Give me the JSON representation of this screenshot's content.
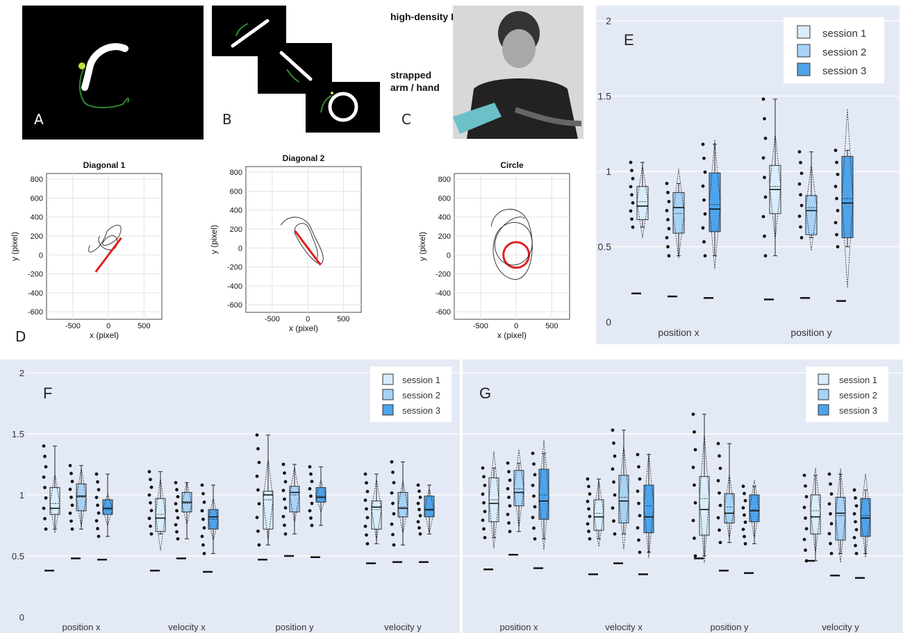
{
  "panel_labels": {
    "A": "A",
    "B": "B",
    "C": "C",
    "D": "D",
    "E": "E",
    "F": "F",
    "G": "G"
  },
  "panel_c": {
    "line1": "high-density EEG",
    "line2": "strapped",
    "line3": "arm / hand"
  },
  "colors": {
    "bg": "#e4eaf5",
    "s1": "#d8ecfb",
    "s2": "#a7d2f6",
    "s3": "#4ea3ea",
    "trace_green": "#2e8b2e",
    "target_red": "#e02020"
  },
  "legend": [
    "session 1",
    "session 2",
    "session 3"
  ],
  "trajectory_plots": [
    {
      "title": "Diagonal 1",
      "xlabel": "x (pixel)",
      "ylabel": "y (pixel)",
      "xticks": [
        "-500",
        "0",
        "500"
      ],
      "yticks": [
        "800",
        "600",
        "400",
        "200",
        "0",
        "-200",
        "-400",
        "-600"
      ]
    },
    {
      "title": "Diagonal 2",
      "xlabel": "x (pixel)",
      "ylabel": "y (pixel)",
      "xticks": [
        "-500",
        "0",
        "500"
      ],
      "yticks": [
        "800",
        "600",
        "400",
        "200",
        "0",
        "-200",
        "-400",
        "-600"
      ]
    },
    {
      "title": "Circle",
      "xlabel": "x (pixel)",
      "ylabel": "y (pixel)",
      "xticks": [
        "-500",
        "0",
        "500"
      ],
      "yticks": [
        "800",
        "600",
        "400",
        "200",
        "0",
        "-200",
        "-400",
        "-600"
      ]
    }
  ],
  "chart_data": [
    {
      "panel": "E",
      "type": "box",
      "ylim": [
        0,
        2
      ],
      "yticks": [
        "0",
        "0.5",
        "1",
        "1.5",
        "2"
      ],
      "categories": [
        "position x",
        "position y"
      ],
      "series": [
        {
          "name": "session 1",
          "boxes": [
            {
              "min": 0.63,
              "q1": 0.68,
              "median": 0.77,
              "mean": 0.8,
              "q3": 0.9,
              "max": 1.06,
              "chance": 0.19
            },
            {
              "min": 0.44,
              "q1": 0.72,
              "median": 0.88,
              "mean": 0.9,
              "q3": 1.04,
              "max": 1.48,
              "chance": 0.15
            }
          ]
        },
        {
          "name": "session 2",
          "boxes": [
            {
              "min": 0.44,
              "q1": 0.59,
              "median": 0.76,
              "mean": 0.72,
              "q3": 0.86,
              "max": 0.92,
              "chance": 0.17
            },
            {
              "min": 0.56,
              "q1": 0.58,
              "median": 0.74,
              "mean": 0.76,
              "q3": 0.84,
              "max": 1.13,
              "chance": 0.16
            }
          ]
        },
        {
          "name": "session 3",
          "boxes": [
            {
              "min": 0.44,
              "q1": 0.6,
              "median": 0.75,
              "mean": 0.78,
              "q3": 0.99,
              "max": 1.18,
              "chance": 0.16
            },
            {
              "min": 0.5,
              "q1": 0.56,
              "median": 0.79,
              "mean": 0.82,
              "q3": 1.1,
              "max": 1.14,
              "chance": 0.14
            }
          ]
        }
      ]
    },
    {
      "panel": "F",
      "type": "box",
      "ylim": [
        0,
        2
      ],
      "yticks": [
        "0",
        "0.5",
        "1",
        "1.5",
        "2"
      ],
      "categories": [
        "position x",
        "velocity x",
        "position y",
        "velocity y"
      ],
      "series": [
        {
          "name": "session 1",
          "boxes": [
            {
              "min": 0.72,
              "q1": 0.84,
              "median": 0.89,
              "mean": 0.93,
              "q3": 1.06,
              "max": 1.4,
              "chance": 0.38
            },
            {
              "min": 0.68,
              "q1": 0.7,
              "median": 0.81,
              "mean": 0.84,
              "q3": 0.97,
              "max": 1.19,
              "chance": 0.38
            },
            {
              "min": 0.59,
              "q1": 0.72,
              "median": 1.0,
              "mean": 0.96,
              "q3": 1.03,
              "max": 1.49,
              "chance": 0.47
            },
            {
              "min": 0.6,
              "q1": 0.72,
              "median": 0.9,
              "mean": 0.88,
              "q3": 0.95,
              "max": 1.17,
              "chance": 0.44
            }
          ]
        },
        {
          "name": "session 2",
          "boxes": [
            {
              "min": 0.72,
              "q1": 0.87,
              "median": 0.99,
              "mean": 0.98,
              "q3": 1.09,
              "max": 1.24,
              "chance": 0.48
            },
            {
              "min": 0.64,
              "q1": 0.86,
              "median": 0.94,
              "mean": 0.93,
              "q3": 1.02,
              "max": 1.1,
              "chance": 0.48
            },
            {
              "min": 0.68,
              "q1": 0.86,
              "median": 1.02,
              "mean": 1.0,
              "q3": 1.07,
              "max": 1.25,
              "chance": 0.5
            },
            {
              "min": 0.59,
              "q1": 0.82,
              "median": 0.89,
              "mean": 0.9,
              "q3": 1.02,
              "max": 1.27,
              "chance": 0.45
            }
          ]
        },
        {
          "name": "session 3",
          "boxes": [
            {
              "min": 0.66,
              "q1": 0.84,
              "median": 0.89,
              "mean": 0.88,
              "q3": 0.96,
              "max": 1.17,
              "chance": 0.47
            },
            {
              "min": 0.52,
              "q1": 0.72,
              "median": 0.82,
              "mean": 0.8,
              "q3": 0.88,
              "max": 1.08,
              "chance": 0.37
            },
            {
              "min": 0.75,
              "q1": 0.94,
              "median": 0.98,
              "mean": 0.99,
              "q3": 1.06,
              "max": 1.23,
              "chance": 0.49
            },
            {
              "min": 0.68,
              "q1": 0.82,
              "median": 0.88,
              "mean": 0.87,
              "q3": 0.99,
              "max": 1.08,
              "chance": 0.45
            }
          ]
        }
      ]
    },
    {
      "panel": "G",
      "type": "box",
      "ylim": [
        0,
        2
      ],
      "yticks": [
        "0",
        "0.5",
        "1",
        "1.5",
        "2"
      ],
      "categories": [
        "position x",
        "velocity x",
        "position y",
        "velocity y"
      ],
      "series": [
        {
          "name": "session 1",
          "boxes": [
            {
              "min": 0.65,
              "q1": 0.78,
              "median": 0.93,
              "mean": 0.96,
              "q3": 1.14,
              "max": 1.22,
              "chance": 0.39
            },
            {
              "min": 0.64,
              "q1": 0.71,
              "median": 0.82,
              "mean": 0.85,
              "q3": 0.96,
              "max": 1.13,
              "chance": 0.35
            },
            {
              "min": 0.5,
              "q1": 0.67,
              "median": 0.88,
              "mean": 0.97,
              "q3": 1.15,
              "max": 1.66,
              "chance": 0.48
            },
            {
              "min": 0.46,
              "q1": 0.68,
              "median": 0.82,
              "mean": 0.87,
              "q3": 1.0,
              "max": 1.16,
              "chance": 0.46
            }
          ]
        },
        {
          "name": "session 2",
          "boxes": [
            {
              "min": 0.7,
              "q1": 0.91,
              "median": 1.02,
              "mean": 1.05,
              "q3": 1.2,
              "max": 1.26,
              "chance": 0.51
            },
            {
              "min": 0.68,
              "q1": 0.77,
              "median": 0.95,
              "mean": 0.98,
              "q3": 1.16,
              "max": 1.53,
              "chance": 0.44
            },
            {
              "min": 0.61,
              "q1": 0.77,
              "median": 0.85,
              "mean": 0.9,
              "q3": 1.01,
              "max": 1.42,
              "chance": 0.38
            },
            {
              "min": 0.52,
              "q1": 0.63,
              "median": 0.85,
              "mean": 0.83,
              "q3": 0.98,
              "max": 1.17,
              "chance": 0.34
            }
          ]
        },
        {
          "name": "session 3",
          "boxes": [
            {
              "min": 0.64,
              "q1": 0.8,
              "median": 0.95,
              "mean": 1.0,
              "q3": 1.21,
              "max": 1.34,
              "chance": 0.4
            },
            {
              "min": 0.53,
              "q1": 0.69,
              "median": 0.82,
              "mean": 0.91,
              "q3": 1.08,
              "max": 1.33,
              "chance": 0.35
            },
            {
              "min": 0.6,
              "q1": 0.78,
              "median": 0.87,
              "mean": 0.88,
              "q3": 1.0,
              "max": 1.07,
              "chance": 0.36
            },
            {
              "min": 0.52,
              "q1": 0.66,
              "median": 0.81,
              "mean": 0.83,
              "q3": 0.97,
              "max": 1.04,
              "chance": 0.32
            }
          ]
        }
      ]
    }
  ]
}
